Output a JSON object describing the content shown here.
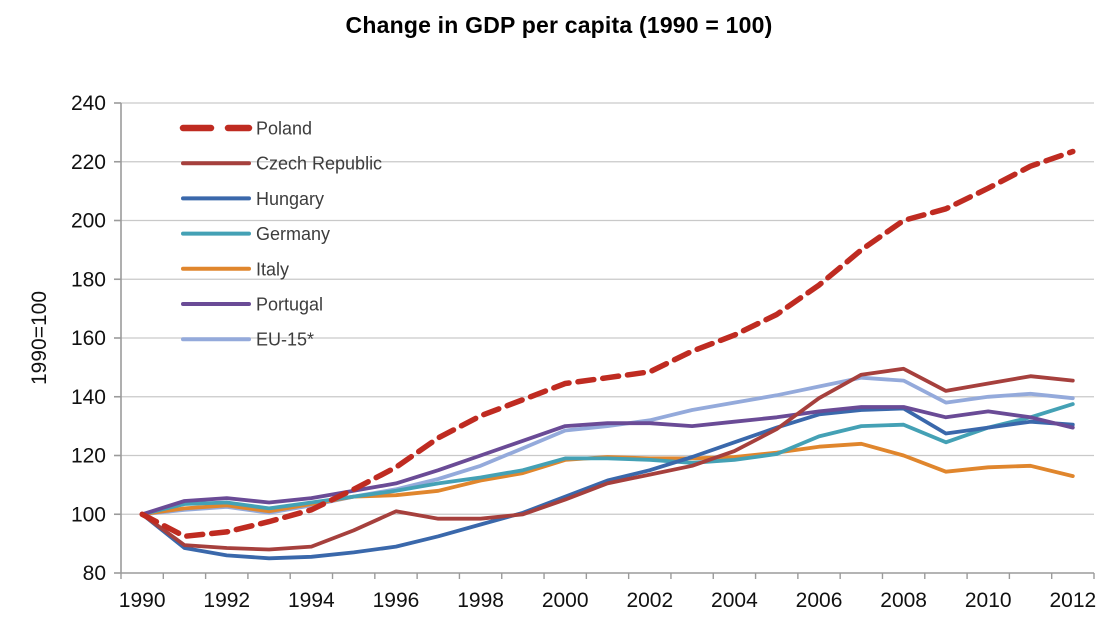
{
  "chart_data": {
    "type": "line",
    "title": "Change in GDP per capita (1990 = 100)",
    "ylabel": "1990=100",
    "xlabel": "",
    "x": [
      1990,
      1991,
      1992,
      1993,
      1994,
      1995,
      1996,
      1997,
      1998,
      1999,
      2000,
      2001,
      2002,
      2003,
      2004,
      2005,
      2006,
      2007,
      2008,
      2009,
      2010,
      2011,
      2012
    ],
    "xticks": [
      1990,
      1992,
      1994,
      1996,
      1998,
      2000,
      2002,
      2004,
      2006,
      2008,
      2010,
      2012
    ],
    "ylim": [
      80,
      240
    ],
    "yticks": [
      80,
      100,
      120,
      140,
      160,
      180,
      200,
      220,
      240
    ],
    "grid": "horizontal",
    "legend_position": "top-left-inside",
    "series": [
      {
        "name": "Poland",
        "color": "#bf2b21",
        "dashed": true,
        "width": 5.5,
        "values": [
          100,
          92.5,
          94,
          97.5,
          101.5,
          108.5,
          116,
          126,
          133.5,
          139,
          144.5,
          146.5,
          148.5,
          155.5,
          161,
          168,
          178,
          190,
          200,
          204,
          211,
          218.5,
          223.5
        ]
      },
      {
        "name": "Czech Republic",
        "color": "#a6403d",
        "dashed": false,
        "width": 3.8,
        "values": [
          100,
          89.5,
          88.5,
          88,
          89,
          94.5,
          101,
          98.5,
          98.5,
          100,
          105,
          110.5,
          113.5,
          116.5,
          121.5,
          129,
          139.5,
          147.5,
          149.5,
          142,
          144.5,
          147,
          145.5
        ]
      },
      {
        "name": "Hungary",
        "color": "#3a68ab",
        "dashed": false,
        "width": 3.8,
        "values": [
          100,
          88.5,
          86,
          85,
          85.5,
          87,
          89,
          92.5,
          96.5,
          100.5,
          106,
          111.5,
          115,
          119.5,
          124.5,
          129.5,
          134,
          135.5,
          136,
          127.5,
          129.5,
          131.5,
          130.5
        ]
      },
      {
        "name": "Germany",
        "color": "#44a1b5",
        "dashed": false,
        "width": 3.8,
        "values": [
          100,
          103.5,
          104,
          102,
          104,
          106,
          108,
          110.5,
          112.5,
          115,
          119,
          119,
          118.5,
          117.5,
          118.5,
          120.5,
          126.5,
          130,
          130.5,
          124.5,
          129.5,
          133,
          137.5
        ]
      },
      {
        "name": "Italy",
        "color": "#e0862d",
        "dashed": false,
        "width": 3.8,
        "values": [
          100,
          102,
          103,
          101,
          103.5,
          106,
          106.5,
          108,
          111.5,
          114,
          118.5,
          119.5,
          119,
          119,
          119.5,
          121,
          123,
          124,
          120,
          114.5,
          116,
          116.5,
          113
        ]
      },
      {
        "name": "Portugal",
        "color": "#6a4b96",
        "dashed": false,
        "width": 3.8,
        "values": [
          100,
          104.5,
          105.5,
          104,
          105.5,
          108,
          110.5,
          115,
          120,
          125,
          130,
          131,
          131,
          130,
          131.5,
          133,
          135,
          136.5,
          136.5,
          133,
          135,
          133,
          129.5
        ]
      },
      {
        "name": "EU-15*",
        "color": "#94aadb",
        "dashed": false,
        "width": 3.8,
        "values": [
          100,
          101.5,
          102.5,
          100.5,
          103,
          106,
          108.5,
          112,
          116.5,
          122.5,
          128.5,
          130,
          132,
          135.5,
          138,
          140.5,
          143.5,
          146.5,
          145.5,
          138,
          140,
          141,
          139.5
        ]
      }
    ]
  },
  "colors": {
    "background": "#ffffff",
    "gridline": "#c9c9c9",
    "axis": "#9b9b9b",
    "tick_text": "#111111",
    "legend_text": "#3d3d3d",
    "title_text": "#000000"
  }
}
